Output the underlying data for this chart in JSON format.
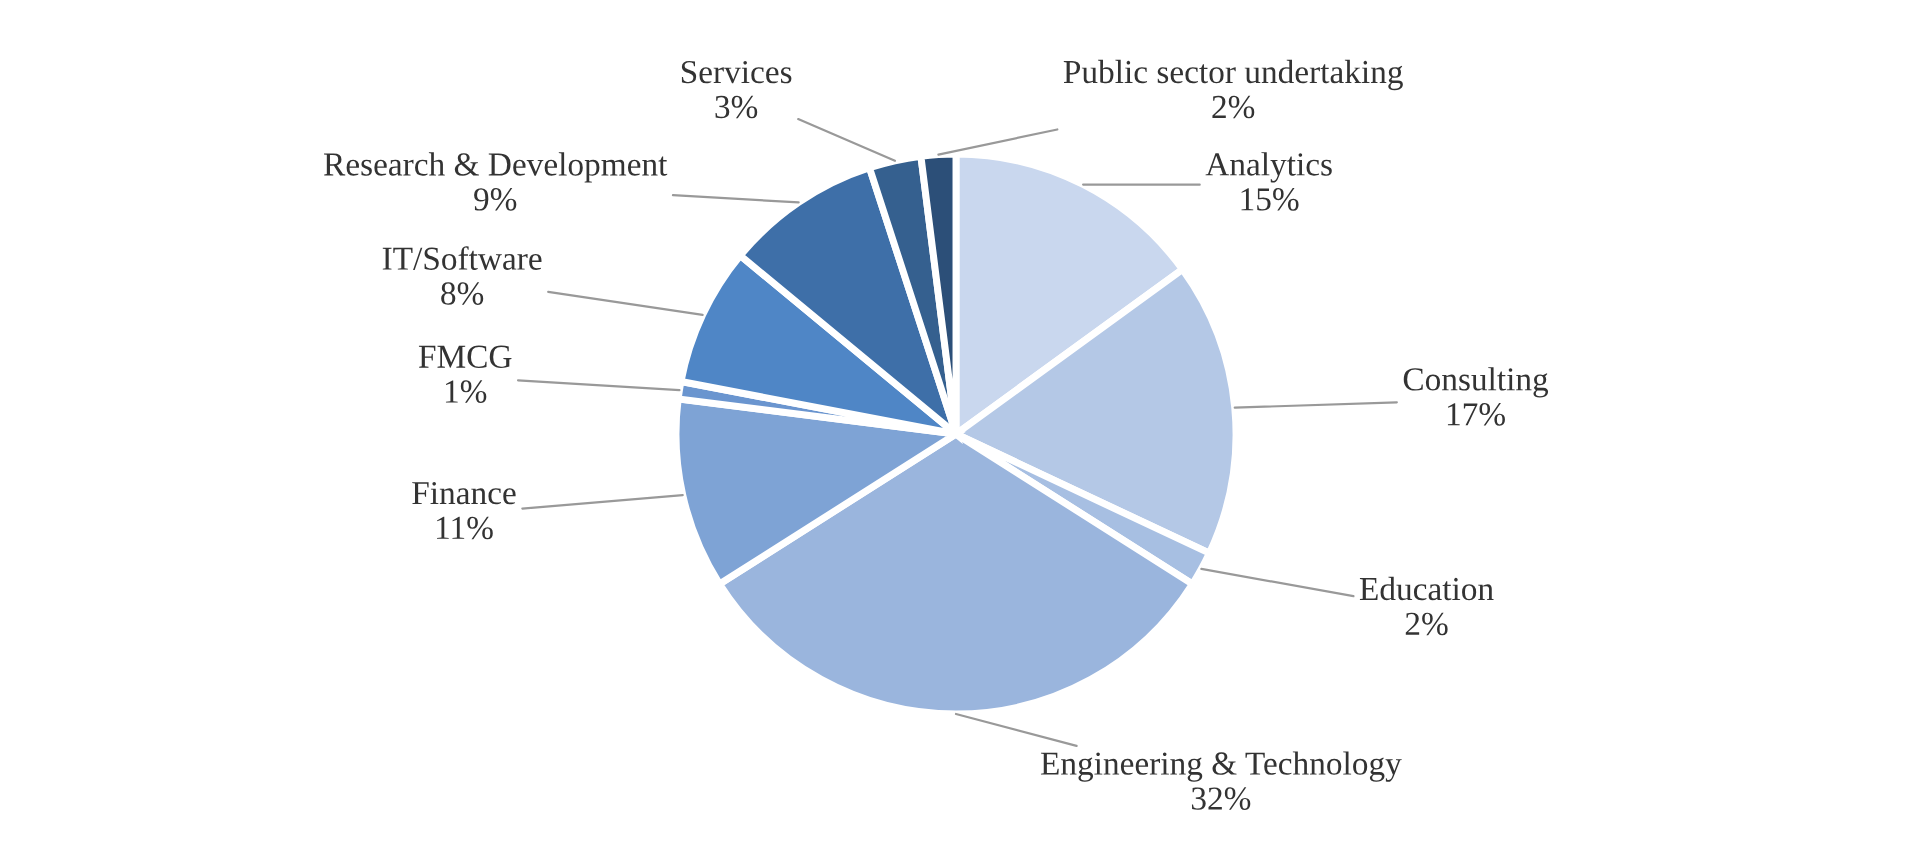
{
  "chart_data": {
    "type": "pie",
    "categories": [
      "Analytics",
      "Consulting",
      "Education",
      "Engineering & Technology",
      "Finance",
      "FMCG",
      "IT/Software",
      "Research & Development",
      "Services",
      "Public sector undertaking"
    ],
    "values": [
      15,
      17,
      2,
      32,
      11,
      1,
      8,
      9,
      3,
      2
    ],
    "value_labels": [
      "15%",
      "17%",
      "2%",
      "32%",
      "11%",
      "1%",
      "8%",
      "9%",
      "3%",
      "2%"
    ],
    "colors": [
      "#c9d7ee",
      "#b4c8e6",
      "#a7bfe2",
      "#9ab5dd",
      "#7ea3d5",
      "#6a95cf",
      "#4f86c6",
      "#3e6fa8",
      "#35608f",
      "#2c4f78"
    ],
    "legend": false
  }
}
